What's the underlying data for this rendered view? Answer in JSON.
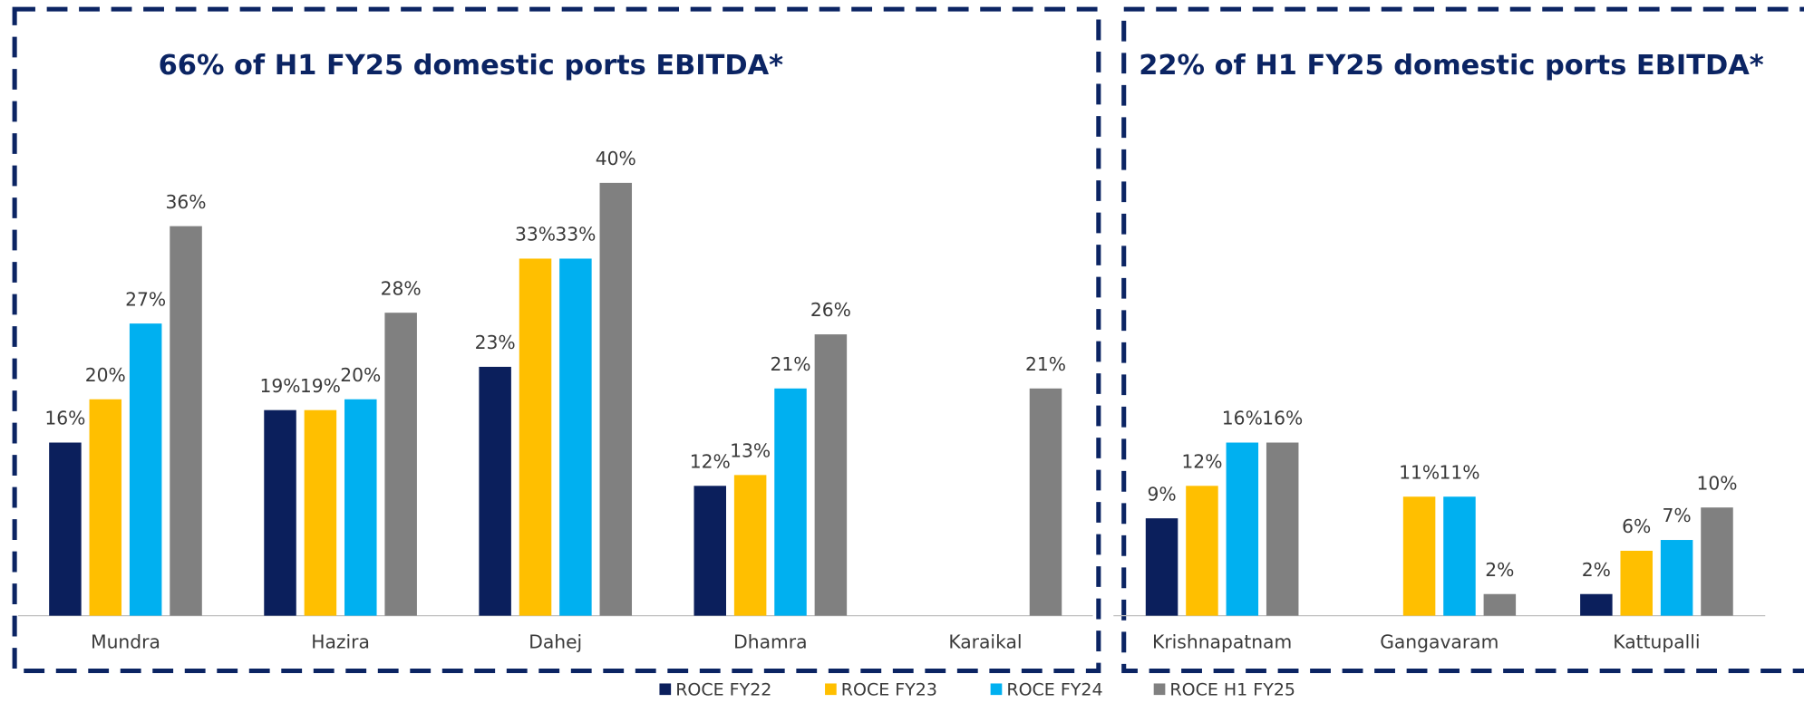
{
  "chart_data": [
    {
      "type": "bar",
      "title": "66% of H1 FY25 domestic ports EBITDA*",
      "categories": [
        "Mundra",
        "Hazira",
        "Dahej",
        "Dhamra",
        "Karaikal"
      ],
      "series": [
        {
          "name": "ROCE FY22",
          "color": "#0b1f5c",
          "values": [
            16,
            19,
            23,
            12,
            null
          ],
          "value_labels": [
            "16%",
            "19%",
            "23%",
            "12%",
            null
          ]
        },
        {
          "name": "ROCE FY23",
          "color": "#ffbf00",
          "values": [
            20,
            19,
            33,
            13,
            null
          ],
          "value_labels": [
            "20%",
            "19%",
            "33%",
            "13%",
            null
          ]
        },
        {
          "name": "ROCE FY24",
          "color": "#00b0f0",
          "values": [
            27,
            20,
            33,
            21,
            null
          ],
          "value_labels": [
            "27%",
            "20%",
            "33%",
            "21%",
            null
          ]
        },
        {
          "name": "ROCE H1 FY25",
          "color": "#808080",
          "values": [
            36,
            28,
            40,
            26,
            21
          ],
          "value_labels": [
            "36%",
            "28%",
            "40%",
            "26%",
            "21%"
          ]
        }
      ]
    },
    {
      "type": "bar",
      "title": "22% of H1 FY25 domestic ports EBITDA*",
      "categories": [
        "Krishnapatnam",
        "Gangavaram",
        "Kattupalli"
      ],
      "series": [
        {
          "color": "#0b1f5c",
          "values": [
            9,
            null,
            2
          ],
          "value_labels": [
            "9%",
            null,
            "2%"
          ]
        },
        {
          "color": "#ffbf00",
          "values": [
            12,
            11,
            6
          ],
          "value_labels": [
            "12%",
            "11%",
            "6%"
          ]
        },
        {
          "color": "#00b0f0",
          "values": [
            16,
            11,
            7
          ],
          "value_labels": [
            "16%",
            "11%",
            "7%"
          ]
        },
        {
          "color": "#808080",
          "values": [
            16,
            2,
            10
          ],
          "value_labels": [
            "16%",
            "2%",
            "10%"
          ]
        }
      ]
    }
  ]
}
